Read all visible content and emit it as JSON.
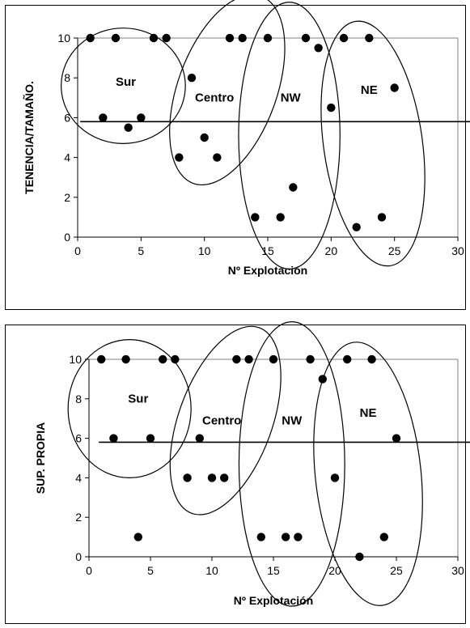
{
  "chart_data": [
    {
      "type": "scatter",
      "title": "",
      "xlabel": "Nº Explotación",
      "ylabel": "TENENCIA/TAMAÑO.",
      "xlim": [
        0,
        30
      ],
      "ylim": [
        0,
        10
      ],
      "x_ticks": [
        "0",
        "5",
        "10",
        "15",
        "20",
        "25",
        "30"
      ],
      "y_ticks": [
        "0",
        "2",
        "4",
        "6",
        "8",
        "10"
      ],
      "x_tick_values": [
        0,
        5,
        10,
        15,
        20,
        25,
        30
      ],
      "y_tick_values": [
        0,
        2,
        4,
        6,
        8,
        10
      ],
      "grid": "top-right plot border",
      "threshold_y": 5.8,
      "threshold_x_range": [
        0.2,
        32.2
      ],
      "marker_color": "#000000",
      "points": [
        {
          "x": 1,
          "y": 10
        },
        {
          "x": 2,
          "y": 6
        },
        {
          "x": 3,
          "y": 10
        },
        {
          "x": 4,
          "y": 5.5
        },
        {
          "x": 5,
          "y": 6
        },
        {
          "x": 6,
          "y": 10
        },
        {
          "x": 7,
          "y": 10
        },
        {
          "x": 8,
          "y": 4
        },
        {
          "x": 9,
          "y": 8
        },
        {
          "x": 10,
          "y": 5
        },
        {
          "x": 11,
          "y": 4
        },
        {
          "x": 12,
          "y": 10
        },
        {
          "x": 13,
          "y": 10
        },
        {
          "x": 14,
          "y": 1
        },
        {
          "x": 15,
          "y": 10
        },
        {
          "x": 16,
          "y": 1
        },
        {
          "x": 17,
          "y": 2.5
        },
        {
          "x": 18,
          "y": 10
        },
        {
          "x": 19,
          "y": 9.5
        },
        {
          "x": 20,
          "y": 6.5
        },
        {
          "x": 21,
          "y": 10
        },
        {
          "x": 22,
          "y": 0.5
        },
        {
          "x": 23,
          "y": 10
        },
        {
          "x": 24,
          "y": 1
        },
        {
          "x": 25,
          "y": 7.5
        }
      ],
      "groups": [
        {
          "label": "Sur",
          "label_x": 3.8,
          "label_y": 7.6,
          "cx": 3.6,
          "cy": 7.6,
          "rx": 4.9,
          "ry": 2.9,
          "rotate": 0
        },
        {
          "label": "Centro",
          "label_x": 10.8,
          "label_y": 6.8,
          "cx": 11.8,
          "cy": 7.4,
          "rx": 3.9,
          "ry": 5.0,
          "rotate": 20
        },
        {
          "label": "NW",
          "label_x": 16.8,
          "label_y": 6.8,
          "cx": 16.7,
          "cy": 5.1,
          "rx": 4.0,
          "ry": 6.7,
          "rotate": 0
        },
        {
          "label": "NE",
          "label_x": 23.0,
          "label_y": 7.2,
          "cx": 23.3,
          "cy": 4.7,
          "rx": 3.9,
          "ry": 6.2,
          "rotate": -8
        }
      ]
    },
    {
      "type": "scatter",
      "title": "",
      "xlabel": "Nº Explotación",
      "ylabel": "SUP. PROPIA",
      "xlim": [
        0,
        30
      ],
      "ylim": [
        0,
        10
      ],
      "x_ticks": [
        "0",
        "5",
        "10",
        "15",
        "20",
        "25",
        "30"
      ],
      "y_ticks": [
        "0",
        "2",
        "4",
        "6",
        "8",
        "10"
      ],
      "x_tick_values": [
        0,
        5,
        10,
        15,
        20,
        25,
        30
      ],
      "y_tick_values": [
        0,
        2,
        4,
        6,
        8,
        10
      ],
      "grid": "top-right plot border",
      "threshold_y": 5.8,
      "threshold_x_range": [
        0.8,
        31.2
      ],
      "marker_color": "#000000",
      "points": [
        {
          "x": 1,
          "y": 10
        },
        {
          "x": 2,
          "y": 6
        },
        {
          "x": 3,
          "y": 10
        },
        {
          "x": 4,
          "y": 1
        },
        {
          "x": 5,
          "y": 6
        },
        {
          "x": 6,
          "y": 10
        },
        {
          "x": 7,
          "y": 10
        },
        {
          "x": 8,
          "y": 4
        },
        {
          "x": 9,
          "y": 6
        },
        {
          "x": 10,
          "y": 4
        },
        {
          "x": 11,
          "y": 4
        },
        {
          "x": 12,
          "y": 10
        },
        {
          "x": 13,
          "y": 10
        },
        {
          "x": 14,
          "y": 1
        },
        {
          "x": 15,
          "y": 10
        },
        {
          "x": 16,
          "y": 1
        },
        {
          "x": 17,
          "y": 1
        },
        {
          "x": 18,
          "y": 10
        },
        {
          "x": 19,
          "y": 9
        },
        {
          "x": 20,
          "y": 4
        },
        {
          "x": 21,
          "y": 10
        },
        {
          "x": 22,
          "y": 0
        },
        {
          "x": 23,
          "y": 10
        },
        {
          "x": 24,
          "y": 1
        },
        {
          "x": 25,
          "y": 6
        }
      ],
      "groups": [
        {
          "label": "Sur",
          "label_x": 4.0,
          "label_y": 7.8,
          "cx": 3.3,
          "cy": 7.5,
          "rx": 5.0,
          "ry": 3.5,
          "rotate": 0
        },
        {
          "label": "Centro",
          "label_x": 10.8,
          "label_y": 6.7,
          "cx": 11.1,
          "cy": 6.9,
          "rx": 3.8,
          "ry": 5.0,
          "rotate": 20
        },
        {
          "label": "NW",
          "label_x": 16.5,
          "label_y": 6.7,
          "cx": 16.5,
          "cy": 4.7,
          "rx": 4.3,
          "ry": 7.2,
          "rotate": 0
        },
        {
          "label": "NE",
          "label_x": 22.7,
          "label_y": 7.1,
          "cx": 22.7,
          "cy": 4.2,
          "rx": 4.3,
          "ry": 6.7,
          "rotate": -6
        }
      ]
    }
  ]
}
